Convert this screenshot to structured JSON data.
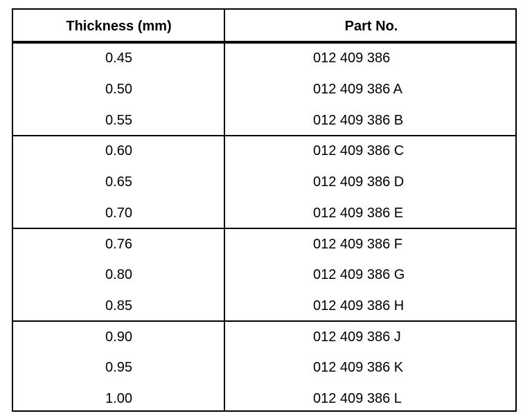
{
  "table": {
    "header": [
      "Thickness (mm)",
      "Part No."
    ],
    "groups": [
      [
        [
          "0.45",
          "012 409 386"
        ],
        [
          "0.50",
          "012 409 386 A"
        ],
        [
          "0.55",
          "012 409 386 B"
        ]
      ],
      [
        [
          "0.60",
          "012 409 386 C"
        ],
        [
          "0.65",
          "012 409 386 D"
        ],
        [
          "0.70",
          "012 409 386 E"
        ]
      ],
      [
        [
          "0.76",
          "012 409 386 F"
        ],
        [
          "0.80",
          "012 409 386 G"
        ],
        [
          "0.85",
          "012 409 386 H"
        ]
      ],
      [
        [
          "0.90",
          "012 409 386 J"
        ],
        [
          "0.95",
          "012 409 386 K"
        ],
        [
          "1.00",
          "012 409 386 L"
        ]
      ]
    ]
  }
}
